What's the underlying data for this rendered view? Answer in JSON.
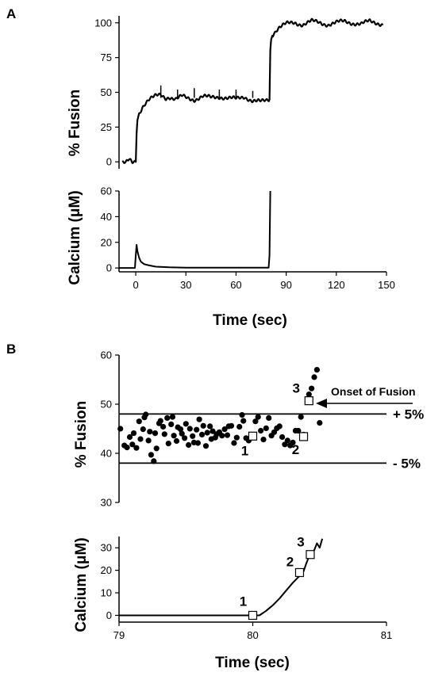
{
  "figure": {
    "panel_a": "A",
    "panel_b": "B"
  },
  "chart_data": [
    {
      "id": "A-fusion",
      "type": "line",
      "ylabel": "% Fusion",
      "xlim": [
        -10,
        150
      ],
      "ylim": [
        -5,
        105
      ],
      "yticks": [
        0,
        25,
        50,
        75,
        100
      ],
      "series": [
        {
          "points": [
            [
              -8,
              0
            ],
            [
              -6,
              -1
            ],
            [
              -4,
              1
            ],
            [
              -2,
              -1
            ],
            [
              0,
              0
            ],
            [
              0.5,
              20
            ],
            [
              1,
              30
            ],
            [
              2,
              35
            ],
            [
              4,
              40
            ],
            [
              6,
              43
            ],
            [
              8,
              45
            ],
            [
              10,
              46
            ],
            [
              12,
              47
            ],
            [
              15,
              48
            ],
            [
              18,
              46
            ],
            [
              20,
              47
            ],
            [
              24,
              45
            ],
            [
              28,
              47
            ],
            [
              30,
              46
            ],
            [
              35,
              45
            ],
            [
              40,
              47
            ],
            [
              45,
              46
            ],
            [
              50,
              47
            ],
            [
              55,
              46
            ],
            [
              60,
              45
            ],
            [
              65,
              47
            ],
            [
              70,
              44
            ],
            [
              75,
              43
            ],
            [
              78,
              44
            ],
            [
              80,
              45
            ],
            [
              80.5,
              80
            ],
            [
              81,
              88
            ],
            [
              82,
              92
            ],
            [
              84,
              95
            ],
            [
              86,
              97
            ],
            [
              88,
              98
            ],
            [
              90,
              99
            ],
            [
              95,
              100
            ],
            [
              100,
              99
            ],
            [
              105,
              101
            ],
            [
              110,
              100
            ],
            [
              115,
              99
            ],
            [
              120,
              100
            ],
            [
              125,
              101
            ],
            [
              130,
              100
            ],
            [
              135,
              99
            ],
            [
              140,
              101
            ],
            [
              145,
              100
            ],
            [
              148,
              99
            ]
          ]
        }
      ],
      "spikes": [
        [
          15,
          55
        ],
        [
          25,
          52
        ],
        [
          35,
          53
        ],
        [
          50,
          52
        ],
        [
          60,
          52
        ],
        [
          70,
          51
        ]
      ]
    },
    {
      "id": "A-calcium",
      "type": "line",
      "xlabel": "Time (sec)",
      "ylabel": "Calcium (μM)",
      "xlim": [
        -10,
        150
      ],
      "ylim": [
        -3,
        60
      ],
      "xticks": [
        0,
        30,
        60,
        90,
        120,
        150
      ],
      "yticks": [
        0,
        20,
        40,
        60
      ],
      "series": [
        {
          "points": [
            [
              -10,
              0
            ],
            [
              -0.5,
              0
            ],
            [
              0,
              10
            ],
            [
              0.5,
              18
            ],
            [
              1,
              13
            ],
            [
              2,
              8
            ],
            [
              3,
              5
            ],
            [
              5,
              3
            ],
            [
              8,
              2
            ],
            [
              12,
              1
            ],
            [
              20,
              0.5
            ],
            [
              30,
              0.3
            ],
            [
              60,
              0.2
            ],
            [
              79.5,
              0.2
            ],
            [
              80,
              10
            ],
            [
              80.5,
              60
            ]
          ]
        }
      ]
    },
    {
      "id": "B-fusion",
      "type": "scatter",
      "ylabel": "% Fusion",
      "xlim": [
        79,
        80.5
      ],
      "ylim": [
        30,
        60
      ],
      "yticks": [
        30,
        40,
        50,
        60
      ],
      "reference_lines": [
        {
          "y": 48,
          "label": "+ 5%"
        },
        {
          "y": 38,
          "label": "- 5%"
        }
      ],
      "points": [
        [
          79.01,
          45
        ],
        [
          79.04,
          41.6
        ],
        [
          79.06,
          41.2
        ],
        [
          79.08,
          43.3
        ],
        [
          79.1,
          41.8
        ],
        [
          79.11,
          44.1
        ],
        [
          79.13,
          41.1
        ],
        [
          79.15,
          46.5
        ],
        [
          79.16,
          42.9
        ],
        [
          79.18,
          44.9
        ],
        [
          79.19,
          47.3
        ],
        [
          79.2,
          47.9
        ],
        [
          79.22,
          42.6
        ],
        [
          79.23,
          44.4
        ],
        [
          79.24,
          39.7
        ],
        [
          79.26,
          38.4
        ],
        [
          79.27,
          44.1
        ],
        [
          79.28,
          41
        ],
        [
          79.3,
          46.1
        ],
        [
          79.31,
          46.6
        ],
        [
          79.33,
          45.4
        ],
        [
          79.34,
          43.9
        ],
        [
          79.36,
          47.2
        ],
        [
          79.37,
          42
        ],
        [
          79.39,
          45.9
        ],
        [
          79.4,
          47.4
        ],
        [
          79.41,
          43.6
        ],
        [
          79.43,
          42.5
        ],
        [
          79.44,
          45.3
        ],
        [
          79.46,
          44.9
        ],
        [
          79.47,
          44
        ],
        [
          79.49,
          43.1
        ],
        [
          79.5,
          46
        ],
        [
          79.52,
          41.7
        ],
        [
          79.53,
          45
        ],
        [
          79.55,
          43.5
        ],
        [
          79.56,
          42.2
        ],
        [
          79.58,
          44.8
        ],
        [
          79.59,
          42.1
        ],
        [
          79.6,
          46.9
        ],
        [
          79.62,
          43.8
        ],
        [
          79.63,
          45.6
        ],
        [
          79.65,
          41.5
        ],
        [
          79.66,
          44.2
        ],
        [
          79.68,
          45.5
        ],
        [
          79.69,
          42.9
        ],
        [
          79.7,
          44.5
        ],
        [
          79.72,
          43.2
        ],
        [
          79.73,
          43.9
        ],
        [
          79.75,
          44.3
        ],
        [
          79.77,
          43.6
        ],
        [
          79.79,
          44.9
        ],
        [
          79.81,
          43.7
        ],
        [
          79.82,
          45.5
        ],
        [
          79.84,
          45.6
        ],
        [
          79.86,
          42.1
        ],
        [
          79.88,
          43.2
        ],
        [
          79.9,
          45.4
        ],
        [
          79.92,
          47.8
        ],
        [
          79.93,
          46.6
        ],
        [
          79.95,
          43.1
        ],
        [
          79.97,
          42.6
        ],
        [
          79.99,
          43.6
        ],
        [
          80.01,
          43.7
        ],
        [
          80.02,
          46.5
        ],
        [
          80.04,
          47.4
        ],
        [
          80.06,
          44.6
        ],
        [
          80.08,
          42.8
        ],
        [
          80.1,
          45.1
        ],
        [
          80.12,
          47.2
        ],
        [
          80.14,
          43.6
        ],
        [
          80.16,
          44.3
        ],
        [
          80.18,
          45.1
        ],
        [
          80.2,
          45.5
        ],
        [
          80.22,
          43.3
        ],
        [
          80.24,
          41.8
        ],
        [
          80.26,
          42.6
        ],
        [
          80.28,
          41.6
        ],
        [
          80.3,
          42.2
        ],
        [
          80.32,
          44.6
        ],
        [
          80.34,
          44.6
        ],
        [
          80.36,
          47.4
        ],
        [
          80.38,
          43.8
        ],
        [
          80.42,
          52
        ],
        [
          80.44,
          53.2
        ],
        [
          80.46,
          55.5
        ],
        [
          80.48,
          57
        ],
        [
          80.5,
          46.2
        ]
      ],
      "marked_points": [
        {
          "label": "1",
          "x": 80.0,
          "y": 43.5
        },
        {
          "label": "2",
          "x": 80.38,
          "y": 43.4
        },
        {
          "label": "3",
          "x": 80.42,
          "y": 50.7
        }
      ],
      "annotation": "Onset of Fusion"
    },
    {
      "id": "B-calcium",
      "type": "line",
      "xlabel": "Time (sec)",
      "ylabel": "Calcium (μM)",
      "xlim": [
        79,
        81
      ],
      "ylim": [
        -3,
        35
      ],
      "xticks": [
        79,
        80,
        81
      ],
      "yticks": [
        0,
        10,
        20,
        30
      ],
      "series": [
        {
          "points": [
            [
              79,
              0
            ],
            [
              79.5,
              0
            ],
            [
              80,
              0
            ],
            [
              80.05,
              0
            ],
            [
              80.1,
              2
            ],
            [
              80.15,
              4.5
            ],
            [
              80.2,
              7.5
            ],
            [
              80.25,
              11
            ],
            [
              80.3,
              14.5
            ],
            [
              80.35,
              17.5
            ],
            [
              80.38,
              19.5
            ],
            [
              80.4,
              23
            ],
            [
              80.42,
              26
            ],
            [
              80.44,
              27
            ],
            [
              80.46,
              29
            ],
            [
              80.48,
              32
            ],
            [
              80.5,
              30
            ],
            [
              80.52,
              34
            ]
          ]
        }
      ],
      "marked_points": [
        {
          "label": "1",
          "x": 80.0,
          "y": 0
        },
        {
          "label": "2",
          "x": 80.35,
          "y": 19
        },
        {
          "label": "3",
          "x": 80.43,
          "y": 27
        }
      ]
    }
  ]
}
